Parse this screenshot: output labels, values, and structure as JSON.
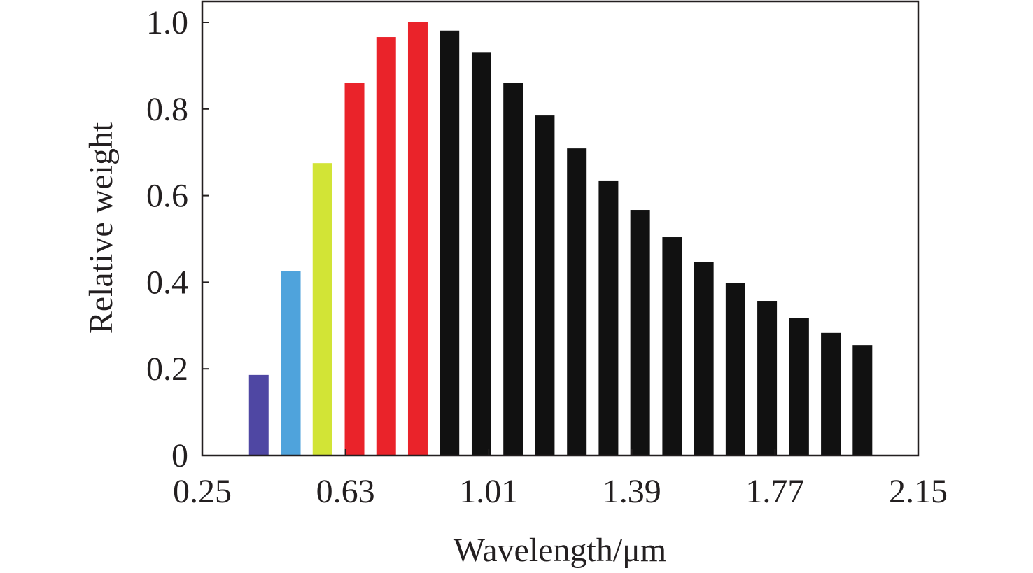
{
  "chart_data": {
    "type": "bar",
    "title": "",
    "xlabel": "Wavelength/μm",
    "ylabel": "Relative weight",
    "xlim": [
      0.25,
      2.15
    ],
    "ylim": [
      0,
      1.0
    ],
    "xticks": [
      "0.25",
      "0.63",
      "1.01",
      "1.39",
      "1.77",
      "2.15"
    ],
    "yticks": [
      "0",
      "0.2",
      "0.4",
      "0.6",
      "0.8",
      "1.0"
    ],
    "grid": false,
    "x": [
      0.4,
      0.485,
      0.569,
      0.654,
      0.738,
      0.822,
      0.906,
      0.991,
      1.075,
      1.159,
      1.244,
      1.328,
      1.412,
      1.497,
      1.581,
      1.665,
      1.749,
      1.834,
      1.918,
      2.002
    ],
    "values": [
      0.186,
      0.425,
      0.675,
      0.861,
      0.966,
      1.0,
      0.981,
      0.93,
      0.861,
      0.785,
      0.709,
      0.635,
      0.567,
      0.504,
      0.447,
      0.399,
      0.357,
      0.317,
      0.283,
      0.255
    ],
    "colors": [
      "#4f47a3",
      "#4fa3dc",
      "#d2e436",
      "#ea232a",
      "#ea232a",
      "#ea232a",
      "#111111",
      "#111111",
      "#111111",
      "#111111",
      "#111111",
      "#111111",
      "#111111",
      "#111111",
      "#111111",
      "#111111",
      "#111111",
      "#111111",
      "#111111",
      "#111111"
    ]
  }
}
